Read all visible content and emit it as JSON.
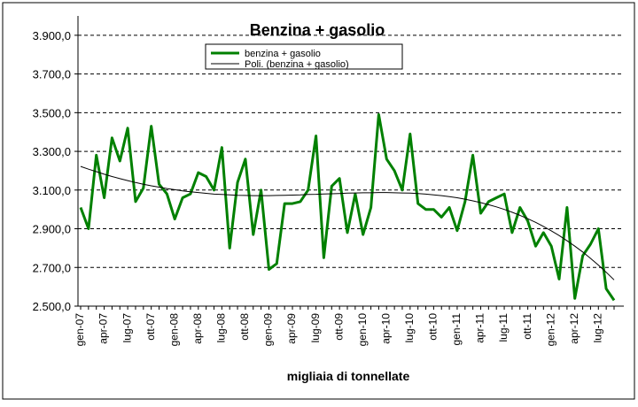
{
  "chart_data": {
    "type": "line",
    "title": "Benzina + gasolio",
    "xlabel": "migliaia di tonnellate",
    "ylabel": "",
    "ylim": [
      2500,
      4000
    ],
    "yticks": [
      2500,
      2700,
      2900,
      3100,
      3300,
      3500,
      3700,
      3900
    ],
    "ytick_labels": [
      "2.500,0",
      "2.700,0",
      "2.900,0",
      "3.100,0",
      "3.300,0",
      "3.500,0",
      "3.700,0",
      "3.900,0"
    ],
    "grid": "horizontal dashed",
    "legend_position": "top-center",
    "months": [
      "gen-07",
      "feb-07",
      "mar-07",
      "apr-07",
      "mag-07",
      "giu-07",
      "lug-07",
      "ago-07",
      "set-07",
      "ott-07",
      "nov-07",
      "dic-07",
      "gen-08",
      "feb-08",
      "mar-08",
      "apr-08",
      "mag-08",
      "giu-08",
      "lug-08",
      "ago-08",
      "set-08",
      "ott-08",
      "nov-08",
      "dic-08",
      "gen-09",
      "feb-09",
      "mar-09",
      "apr-09",
      "mag-09",
      "giu-09",
      "lug-09",
      "ago-09",
      "set-09",
      "ott-09",
      "nov-09",
      "dic-09",
      "gen-10",
      "feb-10",
      "mar-10",
      "apr-10",
      "mag-10",
      "giu-10",
      "lug-10",
      "ago-10",
      "set-10",
      "ott-10",
      "nov-10",
      "dic-10",
      "gen-11",
      "feb-11",
      "mar-11",
      "apr-11",
      "mag-11",
      "giu-11",
      "lug-11",
      "ago-11",
      "set-11",
      "ott-11",
      "nov-11",
      "dic-11",
      "gen-12",
      "feb-12",
      "mar-12",
      "apr-12",
      "mag-12",
      "giu-12",
      "lug-12",
      "ago-12",
      "set-12"
    ],
    "x_tick_labels": [
      "gen-07",
      "apr-07",
      "lug-07",
      "ott-07",
      "gen-08",
      "apr-08",
      "lug-08",
      "ott-08",
      "gen-09",
      "apr-09",
      "lug-09",
      "ott-09",
      "gen-10",
      "apr-10",
      "lug-10",
      "ott-10",
      "gen-11",
      "apr-11",
      "lug-11",
      "ott-11",
      "gen-12",
      "apr-12",
      "lug-12"
    ],
    "series": [
      {
        "name": "benzina + gasolio",
        "color": "#008000",
        "values": [
          3010,
          2900,
          3280,
          3060,
          3370,
          3250,
          3420,
          3040,
          3110,
          3430,
          3130,
          3080,
          2950,
          3060,
          3080,
          3190,
          3170,
          3100,
          3320,
          2800,
          3140,
          3260,
          2870,
          3100,
          2690,
          2720,
          3030,
          3030,
          3040,
          3100,
          3380,
          2750,
          3120,
          3160,
          2880,
          3080,
          2870,
          3010,
          3490,
          3260,
          3200,
          3100,
          3390,
          3030,
          3000,
          3000,
          2960,
          3010,
          2890,
          3040,
          3280,
          2980,
          3040,
          3060,
          3080,
          2880,
          3010,
          2940,
          2810,
          2880,
          2810,
          2640,
          3010,
          2540,
          2760,
          2820,
          2900,
          2590,
          2530
        ]
      },
      {
        "name": "Poli. (benzina + gasolio)",
        "color": "#000000",
        "values": [
          3222,
          3208,
          3195,
          3182,
          3170,
          3159,
          3149,
          3139,
          3130,
          3122,
          3115,
          3108,
          3102,
          3096,
          3091,
          3087,
          3083,
          3079,
          3077,
          3075,
          3073,
          3072,
          3071,
          3071,
          3071,
          3072,
          3073,
          3074,
          3075,
          3077,
          3078,
          3080,
          3081,
          3082,
          3084,
          3085,
          3086,
          3086,
          3087,
          3087,
          3086,
          3085,
          3084,
          3082,
          3079,
          3075,
          3071,
          3066,
          3060,
          3053,
          3044,
          3035,
          3024,
          3013,
          3000,
          2985,
          2969,
          2952,
          2933,
          2912,
          2889,
          2865,
          2838,
          2810,
          2780,
          2747,
          2712,
          2675,
          2636
        ]
      }
    ]
  }
}
